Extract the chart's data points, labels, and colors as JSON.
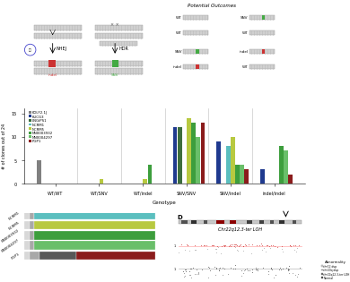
{
  "cell_lines": [
    "KOLF2.1J",
    "KUCG3",
    "LNGiPS1",
    "NCRM1",
    "NCRM5",
    "NN0003932",
    "NN0004297",
    "PGP1"
  ],
  "cell_colors": [
    "#808080",
    "#1f3a8f",
    "#3d6e3d",
    "#5bbfbf",
    "#b8c940",
    "#3d9e3d",
    "#6abf6a",
    "#8b1c1c"
  ],
  "genotypes": [
    "WT/WT",
    "WT/SNV",
    "WT/indel",
    "SNV/SNV",
    "SNV/indel",
    "indel/indel"
  ],
  "bar_data": {
    "KOLF2.1J": [
      5,
      0,
      0,
      0,
      0,
      0
    ],
    "KUCG3": [
      0,
      0,
      0,
      12,
      9,
      3
    ],
    "LNGiPS1": [
      0,
      0,
      0,
      12,
      0,
      0
    ],
    "NCRM1": [
      0,
      0,
      0,
      0,
      8,
      0
    ],
    "NCRM5": [
      0,
      1,
      1,
      14,
      10,
      0
    ],
    "NN0003932": [
      0,
      0,
      4,
      13,
      4,
      8
    ],
    "NN0004297": [
      0,
      0,
      0,
      10,
      4,
      7
    ],
    "PGP1": [
      0,
      0,
      0,
      13,
      3,
      2
    ]
  },
  "stacked_labels": [
    "NCRM1",
    "NCRM5",
    "NN0003932",
    "NN0004297",
    "PGP1"
  ],
  "stacked_data": {
    "NCRM1": [
      0.04,
      0.04,
      0.0,
      0.92
    ],
    "NCRM5": [
      0.04,
      0.04,
      0.0,
      0.92
    ],
    "NN0003932": [
      0.04,
      0.04,
      0.0,
      0.92
    ],
    "NN0004297": [
      0.04,
      0.04,
      0.0,
      0.92
    ],
    "PGP1": [
      0.04,
      0.08,
      0.28,
      0.6
    ]
  },
  "stacked_cat_colors": [
    "#d8d8d8",
    "#a8a8a8",
    "#585858",
    "#282828"
  ],
  "stacked_cell_colors": {
    "NCRM1": "#5bbfbf",
    "NCRM5": "#b8c940",
    "NN0003932": "#3d9e3d",
    "NN0004297": "#6abf6a",
    "PGP1": "#8b1c1c"
  },
  "background_color": "#ffffff",
  "dna_color": "#d0d0d0",
  "dna_stripe": "#b8b8b8",
  "indel_color": "#cc3333",
  "snv_color": "#44aa44"
}
